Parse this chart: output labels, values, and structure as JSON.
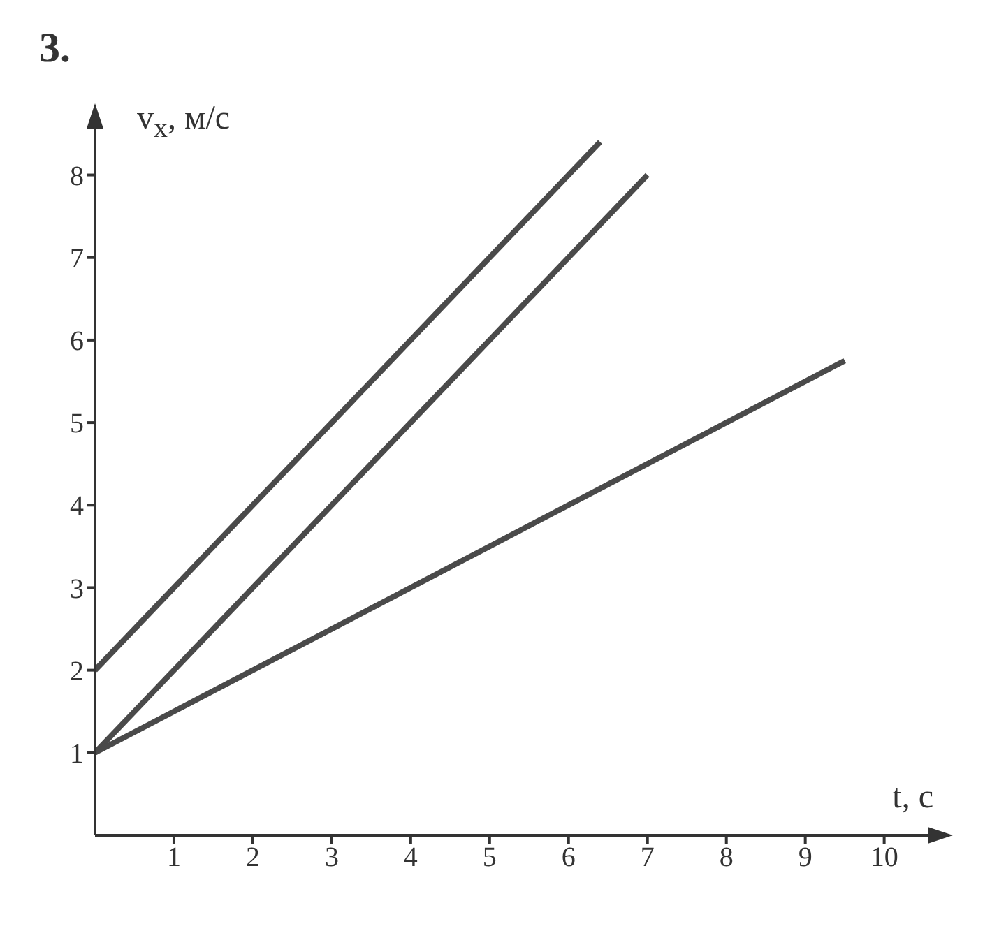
{
  "chart_data": {
    "type": "line",
    "xlabel": "t, с",
    "ylabel": "v$_{x}$, м/с",
    "annotations": [
      "3."
    ],
    "series": [
      {
        "color": "#4a4a4a",
        "x": [
          0,
          6.4
        ],
        "values": [
          2,
          8.4
        ]
      },
      {
        "color": "#4a4a4a",
        "x": [
          0,
          7
        ],
        "values": [
          1,
          8
        ]
      },
      {
        "color": "#4a4a4a",
        "x": [
          0,
          9.5
        ],
        "values": [
          1,
          5.75
        ]
      }
    ],
    "xlim": [
      0,
      10.8
    ],
    "ylim": [
      0,
      8.8
    ],
    "xticks": [
      1,
      2,
      3,
      4,
      5,
      6,
      7,
      8,
      9,
      10
    ],
    "yticks": [
      1,
      2,
      3,
      4,
      5,
      6,
      7,
      8
    ],
    "grid": false,
    "legend": false,
    "marker": "none",
    "line_style": "solid"
  }
}
